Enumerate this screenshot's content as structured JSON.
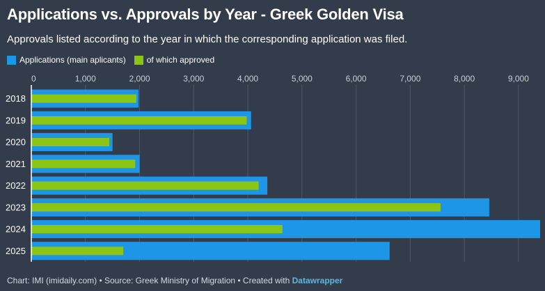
{
  "title": "Applications vs. Approvals by Year - Greek Golden Visa",
  "subtitle": "Approvals listed according to the year in which the corresponding application was filed.",
  "footer": {
    "prefix": "Chart: IMI (imidaily.com) • Source: Greek Ministry of Migration • Created with ",
    "brand": "Datawrapper"
  },
  "colors": {
    "background": "#333c4b",
    "applications": "#1e96e8",
    "approved": "#8cc614",
    "grid": "#4f5868"
  },
  "chart_data": {
    "type": "bar",
    "orientation": "horizontal",
    "categories": [
      "2018",
      "2019",
      "2020",
      "2021",
      "2022",
      "2023",
      "2024",
      "2025"
    ],
    "series": [
      {
        "name": "Applications (main aplicants)",
        "values": [
          1980,
          4060,
          1500,
          2000,
          4360,
          8460,
          9400,
          6620
        ]
      },
      {
        "name": "of which approved",
        "values": [
          1940,
          3980,
          1440,
          1920,
          4200,
          7560,
          4640,
          1700
        ]
      }
    ],
    "xlim": [
      0,
      9400
    ],
    "xticks": [
      0,
      1000,
      2000,
      3000,
      4000,
      5000,
      6000,
      7000,
      8000,
      9000
    ],
    "xtick_labels": [
      "0",
      "1,000",
      "2,000",
      "3,000",
      "4,000",
      "5,000",
      "6,000",
      "7,000",
      "8,000",
      "9,000"
    ],
    "grid": true,
    "xaxis_position": "top",
    "legend_position": "top-left"
  }
}
